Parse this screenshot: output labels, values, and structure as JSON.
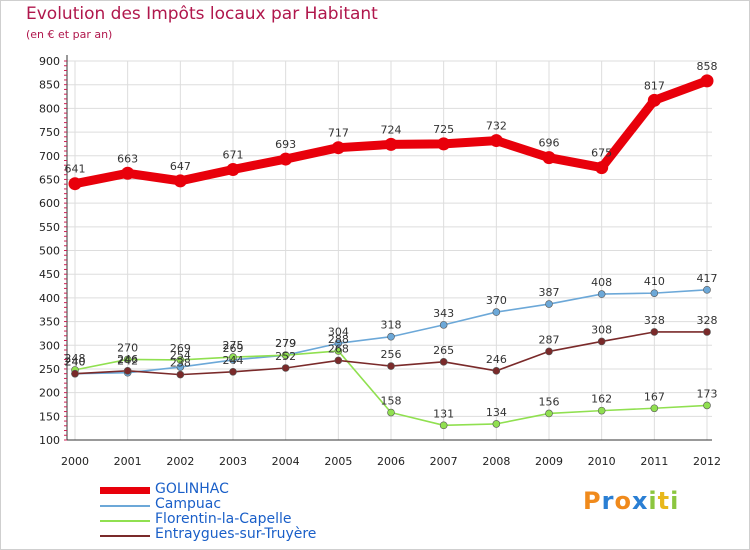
{
  "title": "Evolution des Impôts locaux par Habitant",
  "subtitle": "(en € et par an)",
  "logo": {
    "text": "Proxiti",
    "letters": [
      "P",
      "r",
      "o",
      "x",
      "i",
      "t",
      "i"
    ],
    "colors": [
      "#f08a1c",
      "#2a7fd4",
      "#f08a1c",
      "#2a7fd4",
      "#8cc63f",
      "#e8b81c",
      "#8cc63f"
    ]
  },
  "chart_data": {
    "type": "line",
    "title": "Evolution des Impôts locaux par Habitant",
    "subtitle": "(en € et par an)",
    "xlabel": "",
    "ylabel": "",
    "ylim": [
      100,
      900
    ],
    "yticks": [
      100,
      150,
      200,
      250,
      300,
      350,
      400,
      450,
      500,
      550,
      600,
      650,
      700,
      750,
      800,
      850,
      900
    ],
    "x": [
      "2000",
      "2001",
      "2002",
      "2003",
      "2004",
      "2005",
      "2006",
      "2007",
      "2008",
      "2009",
      "2010",
      "2011",
      "2012"
    ],
    "grid": true,
    "legend_position": "bottom-left",
    "series": [
      {
        "name": "GOLINHAC",
        "color": "#e8000b",
        "thick": true,
        "values": [
          641,
          663,
          647,
          671,
          693,
          717,
          724,
          725,
          732,
          696,
          675,
          817,
          858
        ]
      },
      {
        "name": "Campuac",
        "color": "#6ca8d8",
        "thick": false,
        "values": [
          240,
          242,
          254,
          269,
          279,
          304,
          318,
          343,
          370,
          387,
          408,
          410,
          417
        ]
      },
      {
        "name": "Florentin-la-Capelle",
        "color": "#90e050",
        "thick": false,
        "values": [
          248,
          270,
          269,
          275,
          279,
          288,
          158,
          131,
          134,
          156,
          162,
          167,
          173
        ]
      },
      {
        "name": "Entraygues-sur-Truyère",
        "color": "#7a2a2a",
        "thick": false,
        "values": [
          240,
          246,
          238,
          244,
          252,
          268,
          256,
          265,
          246,
          287,
          308,
          328,
          328
        ]
      }
    ]
  }
}
